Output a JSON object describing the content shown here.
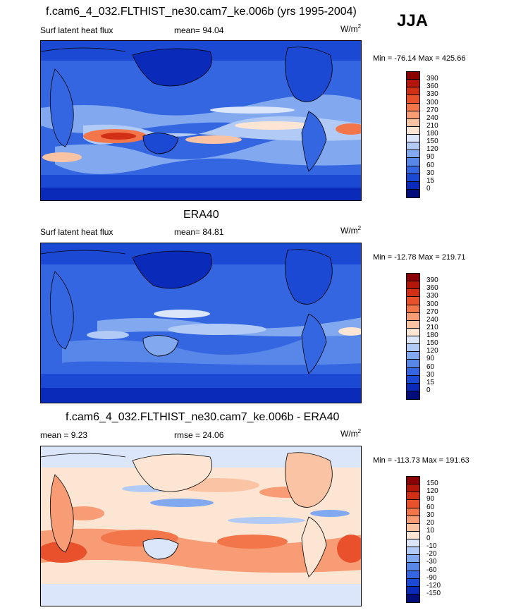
{
  "season": "JJA",
  "units_base": "W/m",
  "units_exp": "2",
  "panels": [
    {
      "title": "f.cam6_4_032.FLTHIST_ne30.cam7_ke.006b (yrs 1995-2004)",
      "left_label": "Surf latent heat flux",
      "center_label": "mean=  94.04",
      "minmax": "Min = -76.14 Max = 425.66",
      "colorbar_labels": [
        "390",
        "360",
        "330",
        "300",
        "270",
        "240",
        "210",
        "180",
        "150",
        "120",
        "90",
        "60",
        "30",
        "15",
        "0"
      ],
      "colorbar_colors": [
        "#8b0000",
        "#b5160c",
        "#d13016",
        "#e8512b",
        "#f2764a",
        "#f79c74",
        "#fac3a3",
        "#fde5d3",
        "#dbe6fb",
        "#b2cbf6",
        "#82a9f0",
        "#5787e9",
        "#3366e0",
        "#1c49d3",
        "#0a2aba",
        "#000d7a"
      ]
    },
    {
      "title": "ERA40",
      "left_label": "Surf latent heat flux",
      "center_label": "mean=  84.81",
      "minmax": "Min = -12.78 Max = 219.71",
      "colorbar_labels": [
        "390",
        "360",
        "330",
        "300",
        "270",
        "240",
        "210",
        "180",
        "150",
        "120",
        "90",
        "60",
        "30",
        "15",
        "0"
      ],
      "colorbar_colors": [
        "#8b0000",
        "#b5160c",
        "#d13016",
        "#e8512b",
        "#f2764a",
        "#f79c74",
        "#fac3a3",
        "#fde5d3",
        "#dbe6fb",
        "#b2cbf6",
        "#82a9f0",
        "#5787e9",
        "#3366e0",
        "#1c49d3",
        "#0a2aba",
        "#000d7a"
      ]
    },
    {
      "title": "f.cam6_4_032.FLTHIST_ne30.cam7_ke.006b - ERA40",
      "left_label": "mean =   9.23",
      "center_label": "rmse =  24.06",
      "minmax": "Min = -113.73 Max = 191.63",
      "colorbar_labels": [
        "150",
        "120",
        "90",
        "60",
        "30",
        "20",
        "10",
        "0",
        "-10",
        "-20",
        "-30",
        "-60",
        "-90",
        "-120",
        "-150"
      ],
      "colorbar_colors": [
        "#8b0000",
        "#b5160c",
        "#d13016",
        "#e8512b",
        "#f2764a",
        "#f79c74",
        "#fac3a3",
        "#fde5d3",
        "#dbe6fb",
        "#b2cbf6",
        "#82a9f0",
        "#5787e9",
        "#3366e0",
        "#1c49d3",
        "#0a2aba",
        "#000d7a"
      ]
    }
  ]
}
